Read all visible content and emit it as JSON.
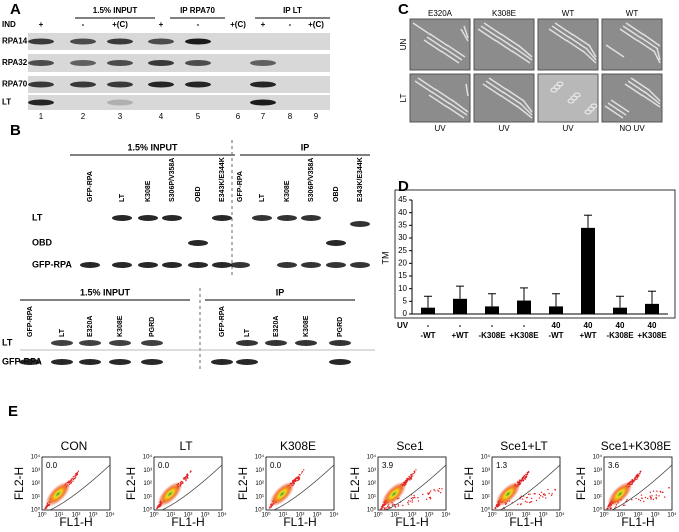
{
  "panel_a": {
    "label": "A",
    "groups": [
      "1.5% INPUT",
      "IP RPA70",
      "IP LT"
    ],
    "ind_label": "IND",
    "ind": [
      "+",
      "-",
      "+(C)",
      "+",
      "-",
      "+(C)",
      "+",
      "-",
      "+(C)"
    ],
    "rows": [
      "RPA14",
      "RPA32",
      "RPA70",
      "LT"
    ],
    "lanes": [
      "1",
      "2",
      "3",
      "4",
      "5",
      "6",
      "7",
      "8",
      "9"
    ]
  },
  "panel_b": {
    "label": "B",
    "top": {
      "groups": [
        "1.5% INPUT",
        "IP"
      ],
      "lanes": [
        "GFP-RPA",
        "LT",
        "K308E",
        "S306P/V358A",
        "OBD",
        "E343K/E344K"
      ],
      "rows": [
        "LT",
        "OBD",
        "GFP-RPA"
      ]
    },
    "bottom": {
      "groups": [
        "1.5% INPUT",
        "IP"
      ],
      "lanes": [
        "GFP-RPA",
        "LT",
        "E320A",
        "K308E",
        "PGRD"
      ],
      "rows": [
        "LT",
        "GFP-RPA"
      ]
    }
  },
  "panel_c": {
    "label": "C",
    "columns": [
      "E320A",
      "K308E",
      "WT",
      "WT"
    ],
    "rows": [
      "UN",
      "LT"
    ],
    "treatments": [
      "UV",
      "UV",
      "UV",
      "NO UV"
    ]
  },
  "chart_data": {
    "type": "bar",
    "panel_label": "D",
    "y_label": "TM",
    "categories": [
      "-WT",
      "+WT",
      "-K308E",
      "+K308E",
      "-WT",
      "+WT",
      "-K308E",
      "+K308E"
    ],
    "uv_label": "UV",
    "uv_doses": [
      "-",
      "-",
      "-",
      "-",
      "40",
      "40",
      "40",
      "40"
    ],
    "values": [
      2.5,
      6,
      3,
      5.3,
      3,
      34,
      2.5,
      4
    ],
    "errors": [
      4.5,
      5,
      5,
      5,
      5,
      5,
      4.5,
      5
    ],
    "color": "#000000",
    "ylim": [
      0,
      45
    ],
    "yticks": [
      0,
      5,
      10,
      15,
      20,
      25,
      30,
      35,
      40,
      45
    ]
  },
  "panel_e": {
    "label": "E",
    "y_label": "FL2-H",
    "x_label": "FL1-H",
    "ticks": [
      "10⁰",
      "10¹",
      "10²",
      "10³",
      "10⁴"
    ],
    "plots": [
      {
        "title": "CON",
        "value": "0.0"
      },
      {
        "title": "LT",
        "value": "0.0"
      },
      {
        "title": "K308E",
        "value": "0.0"
      },
      {
        "title": "Sce1",
        "value": "3.9"
      },
      {
        "title": "Sce1+LT",
        "value": "1.3"
      },
      {
        "title": "Sce1+K308E",
        "value": "3.6"
      }
    ]
  }
}
